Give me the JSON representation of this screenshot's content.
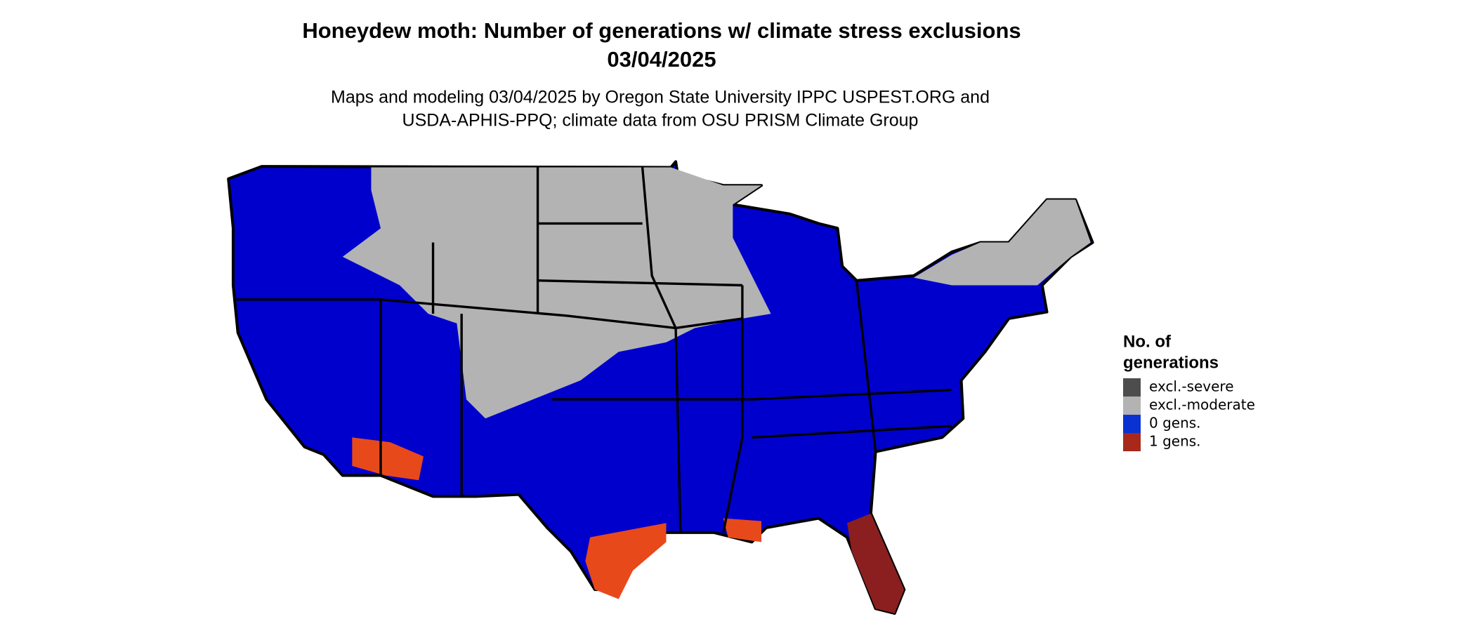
{
  "title": "Honeydew moth: Number of generations w/ climate stress exclusions",
  "date": "03/04/2025",
  "subtitle_lines": [
    "Maps and modeling 03/04/2025 by Oregon State University IPPC USPEST.ORG and",
    "USDA-APHIS-PPQ; climate data from OSU PRISM Climate Group"
  ],
  "legend": {
    "title_lines": [
      "No. of",
      "generations"
    ],
    "items": [
      {
        "label": "excl.-severe",
        "color": "#4d4d4d"
      },
      {
        "label": "excl.-moderate",
        "color": "#b3b3b3"
      },
      {
        "label": "0 gens.",
        "color": "#0a32d2"
      },
      {
        "label": "1 gens.",
        "color": "#a8281a"
      }
    ]
  }
}
